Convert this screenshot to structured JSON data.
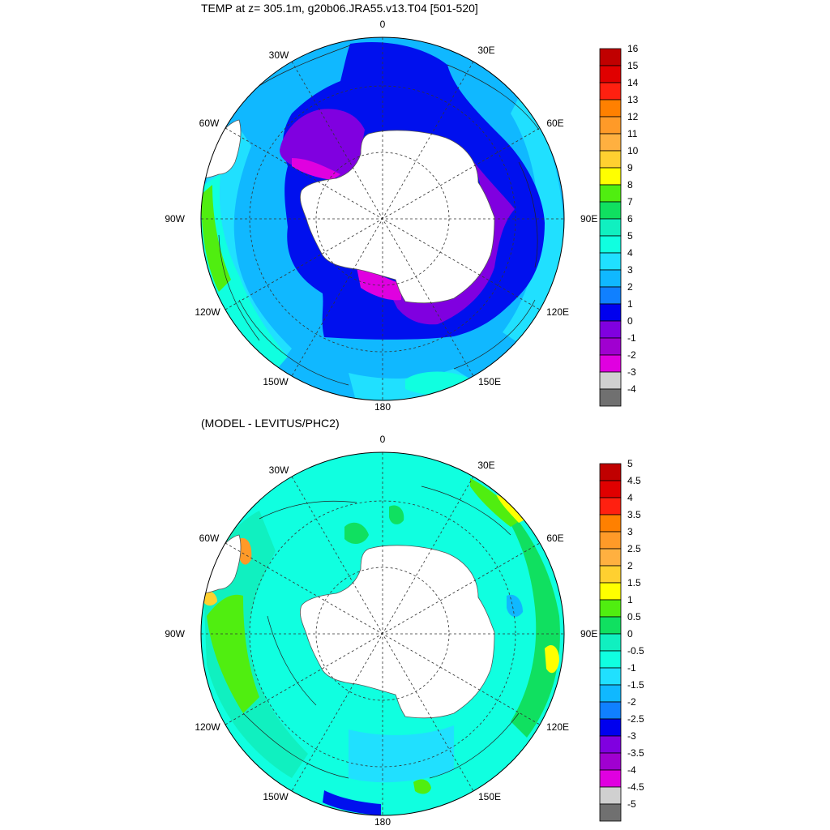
{
  "panels": [
    {
      "title": "TEMP at z= 305.1m, g20b06.JRA55.v13.T04 [501-520]",
      "lon_labels": [
        "0",
        "30E",
        "60E",
        "90E",
        "120E",
        "150E",
        "180",
        "150W",
        "120W",
        "90W",
        "60W",
        "30W"
      ],
      "colorbar": {
        "labels": [
          "16",
          "15",
          "14",
          "13",
          "12",
          "11",
          "10",
          "9",
          "8",
          "7",
          "6",
          "5",
          "4",
          "3",
          "2",
          "1",
          "0",
          "-1",
          "-2",
          "-3",
          "-4"
        ],
        "colors": [
          "#c00000",
          "#e00000",
          "#ff2010",
          "#ff8000",
          "#ff9a28",
          "#ffb040",
          "#ffd030",
          "#ffff00",
          "#50ee10",
          "#10e060",
          "#10f0c0",
          "#10ffe0",
          "#20e0ff",
          "#10b8ff",
          "#1080ff",
          "#0000ee",
          "#8000e0",
          "#a000d0",
          "#e000e0",
          "#d0d0d0",
          "#707070"
        ]
      }
    },
    {
      "title": "(MODEL - LEVITUS/PHC2)",
      "lon_labels": [
        "0",
        "30E",
        "60E",
        "90E",
        "120E",
        "150E",
        "180",
        "150W",
        "120W",
        "90W",
        "60W",
        "30W"
      ],
      "colorbar": {
        "labels": [
          "5",
          "4.5",
          "4",
          "3.5",
          "3",
          "2.5",
          "2",
          "1.5",
          "1",
          "0.5",
          "0",
          "-0.5",
          "-1",
          "-1.5",
          "-2",
          "-2.5",
          "-3",
          "-3.5",
          "-4",
          "-4.5",
          "-5"
        ],
        "colors": [
          "#c00000",
          "#e00000",
          "#ff2010",
          "#ff8000",
          "#ff9a28",
          "#ffb040",
          "#ffd030",
          "#ffff00",
          "#50ee10",
          "#10e060",
          "#10f0c0",
          "#10ffe0",
          "#20e0ff",
          "#10b8ff",
          "#1080ff",
          "#0000ee",
          "#8000e0",
          "#a000d0",
          "#e000e0",
          "#d0d0d0",
          "#707070"
        ]
      }
    }
  ]
}
